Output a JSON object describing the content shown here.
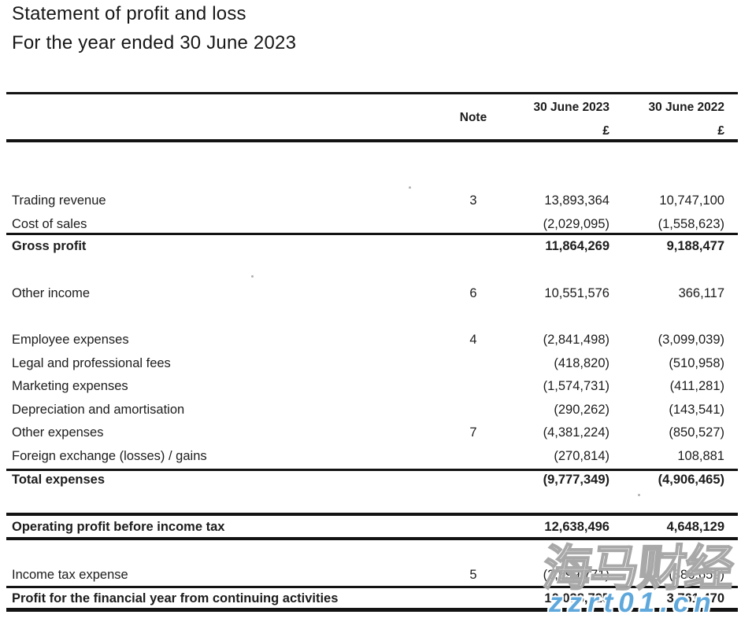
{
  "document": {
    "title": "Statement of profit and loss",
    "subtitle": "For the year ended 30 June 2023"
  },
  "table": {
    "headers": {
      "note": "Note",
      "col_2023": {
        "label": "30 June 2023",
        "currency": "£"
      },
      "col_2022": {
        "label": "30 June 2022",
        "currency": "£"
      }
    },
    "rows": [
      {
        "label": "Trading revenue",
        "note": "3",
        "v2023": "13,893,364",
        "v2022": "10,747,100",
        "bold": false
      },
      {
        "label": "Cost of sales",
        "note": "",
        "v2023": "(2,029,095)",
        "v2022": "(1,558,623)",
        "bold": false
      },
      {
        "label": "Gross profit",
        "note": "",
        "v2023": "11,864,269",
        "v2022": "9,188,477",
        "bold": true
      },
      {
        "label": "Other income",
        "note": "6",
        "v2023": "10,551,576",
        "v2022": "366,117",
        "bold": false
      },
      {
        "label": "Employee expenses",
        "note": "4",
        "v2023": "(2,841,498)",
        "v2022": "(3,099,039)",
        "bold": false
      },
      {
        "label": "Legal and professional fees",
        "note": "",
        "v2023": "(418,820)",
        "v2022": "(510,958)",
        "bold": false
      },
      {
        "label": "Marketing expenses",
        "note": "",
        "v2023": "(1,574,731)",
        "v2022": "(411,281)",
        "bold": false
      },
      {
        "label": "Depreciation and amortisation",
        "note": "",
        "v2023": "(290,262)",
        "v2022": "(143,541)",
        "bold": false
      },
      {
        "label": "Other expenses",
        "note": "7",
        "v2023": "(4,381,224)",
        "v2022": "(850,527)",
        "bold": false
      },
      {
        "label": "Foreign exchange (losses) / gains",
        "note": "",
        "v2023": "(270,814)",
        "v2022": "108,881",
        "bold": false
      },
      {
        "label": "Total expenses",
        "note": "",
        "v2023": "(9,777,349)",
        "v2022": "(4,906,465)",
        "bold": true
      },
      {
        "label": "Operating profit before income tax",
        "note": "",
        "v2023": "12,638,496",
        "v2022": "4,648,129",
        "bold": true
      },
      {
        "label": "Income tax expense",
        "note": "5",
        "v2023": "(2,599,771)",
        "v2022": "(886,659)",
        "bold": false
      },
      {
        "label": "Profit for the financial year from continuing activities",
        "note": "",
        "v2023": "10,038,725",
        "v2022": "3,761,470",
        "bold": true
      }
    ]
  },
  "watermark": {
    "cjk_text": "海马财经",
    "site_text": "zzrt01.cn",
    "site_color": "#5fa8dc",
    "outline_color": "#a8a8a8"
  }
}
